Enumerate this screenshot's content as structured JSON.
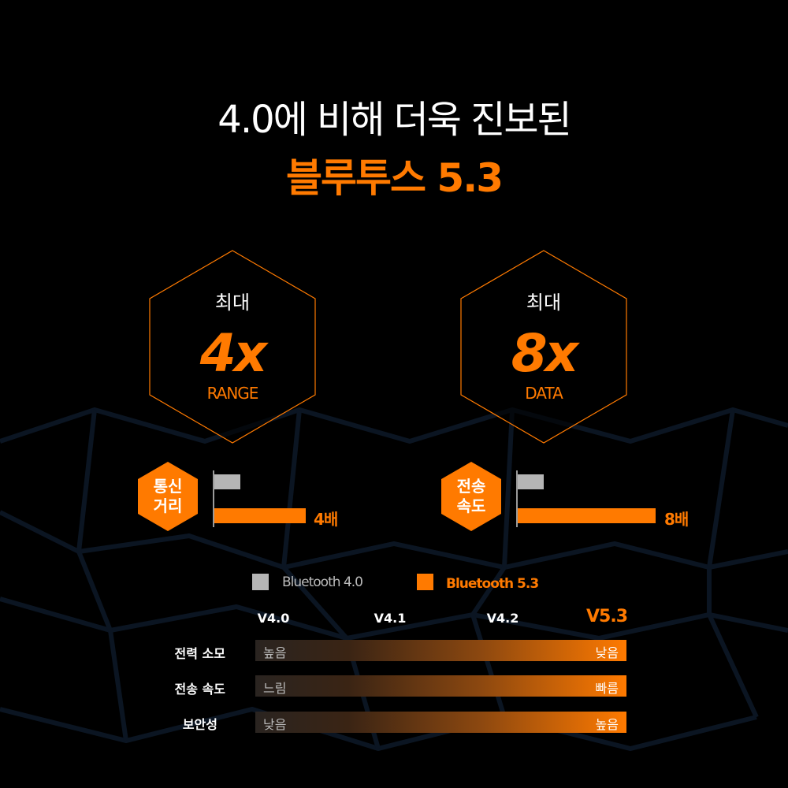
{
  "title": {
    "line1": "4.0에 비해 더욱 진보된",
    "line2": "블루투스 5.3"
  },
  "colors": {
    "accent": "#ff7a00",
    "gray": "#b5b5b5",
    "background": "#000000"
  },
  "hexagons": [
    {
      "top": "최대",
      "value": "4x",
      "label": "RANGE"
    },
    {
      "top": "최대",
      "value": "8x",
      "label": "DATA"
    }
  ],
  "comparisons": [
    {
      "badge_line1": "통신",
      "badge_line2": "거리",
      "bluetooth_4_0": 1,
      "bluetooth_5_3": 4,
      "multiplier_label": "4배"
    },
    {
      "badge_line1": "전송",
      "badge_line2": "속도",
      "bluetooth_4_0": 1,
      "bluetooth_5_3": 8,
      "multiplier_label": "8배"
    }
  ],
  "legend": [
    {
      "label": "Bluetooth 4.0",
      "color": "#b5b5b5"
    },
    {
      "label": "Bluetooth 5.3",
      "color": "#ff7a00"
    }
  ],
  "versions": [
    "V4.0",
    "V4.1",
    "V4.2",
    "V5.3"
  ],
  "rows": [
    {
      "label": "전력 소모",
      "low_end": "높음",
      "high_end": "낮음"
    },
    {
      "label": "전송 속도",
      "low_end": "느림",
      "high_end": "빠름"
    },
    {
      "label": "보안성",
      "low_end": "낮음",
      "high_end": "높음"
    }
  ]
}
